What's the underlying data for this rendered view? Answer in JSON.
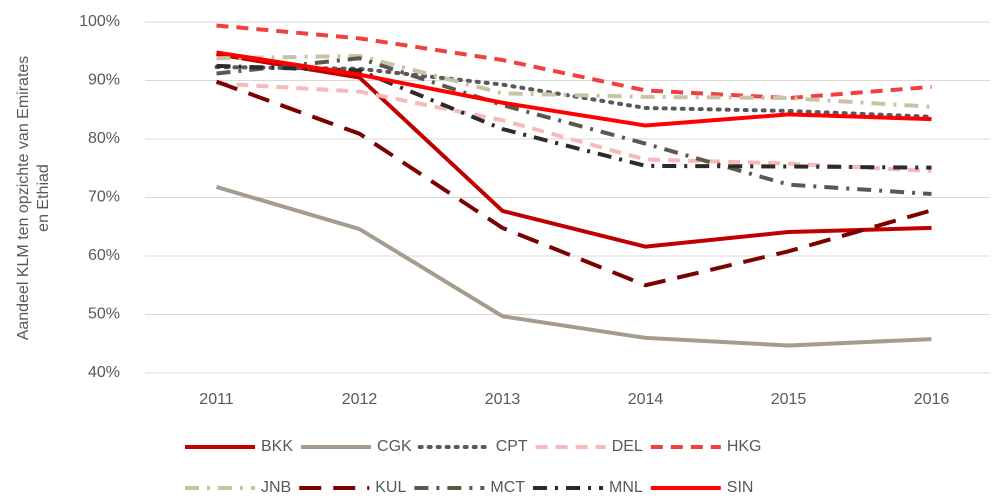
{
  "chart_data": {
    "type": "line",
    "y_label": [
      "Aandeel KLM ten opzichte van Emirates",
      "en Ethiad"
    ],
    "categories": [
      "2011",
      "2012",
      "2013",
      "2014",
      "2015",
      "2016"
    ],
    "ylim": [
      40,
      100
    ],
    "yticks": [
      {
        "value": 40,
        "label": "40%"
      },
      {
        "value": 50,
        "label": "50%"
      },
      {
        "value": 60,
        "label": "60%"
      },
      {
        "value": 70,
        "label": "70%"
      },
      {
        "value": 80,
        "label": "80%"
      },
      {
        "value": 90,
        "label": "90%"
      },
      {
        "value": 100,
        "label": "100%"
      }
    ],
    "grid": true,
    "legend": "bottom",
    "series": [
      {
        "name": "BKK",
        "color": "#c00000",
        "dash": "solid",
        "values": [
          94.5,
          90.5,
          67.7,
          61.6,
          64.1,
          64.8
        ]
      },
      {
        "name": "CGK",
        "color": "#a59c8e",
        "dash": "solid",
        "values": [
          71.8,
          64.6,
          49.7,
          46.0,
          44.7,
          45.8
        ]
      },
      {
        "name": "CPT",
        "color": "#595959",
        "dash": "dot",
        "values": [
          92.3,
          92.0,
          89.3,
          85.3,
          84.8,
          83.8
        ]
      },
      {
        "name": "DEL",
        "color": "#f7b9b9",
        "dash": "dash",
        "values": [
          89.5,
          88.1,
          83.2,
          76.5,
          75.8,
          74.5
        ]
      },
      {
        "name": "HKG",
        "color": "#f04040",
        "dash": "dash",
        "values": [
          99.4,
          97.2,
          93.5,
          88.3,
          87.0,
          88.9
        ]
      },
      {
        "name": "JNB",
        "color": "#cbc2a6",
        "dash": "dashdot",
        "values": [
          93.8,
          94.2,
          87.8,
          87.2,
          87.0,
          85.5
        ]
      },
      {
        "name": "KUL",
        "color": "#7b0000",
        "dash": "longdash",
        "values": [
          89.8,
          80.9,
          64.8,
          55.0,
          60.8,
          67.8
        ]
      },
      {
        "name": "MCT",
        "color": "#5e574c",
        "dash": "dashdot",
        "values": [
          91.2,
          93.8,
          85.8,
          79.2,
          72.2,
          70.6
        ]
      },
      {
        "name": "MNL",
        "color": "#2b2b2b",
        "dash": "dashdot",
        "values": [
          92.5,
          91.7,
          81.7,
          75.4,
          75.3,
          75.1
        ]
      },
      {
        "name": "SIN",
        "color": "#ff0000",
        "dash": "solid",
        "values": [
          94.8,
          91.0,
          86.2,
          82.3,
          84.2,
          83.4
        ]
      }
    ]
  }
}
